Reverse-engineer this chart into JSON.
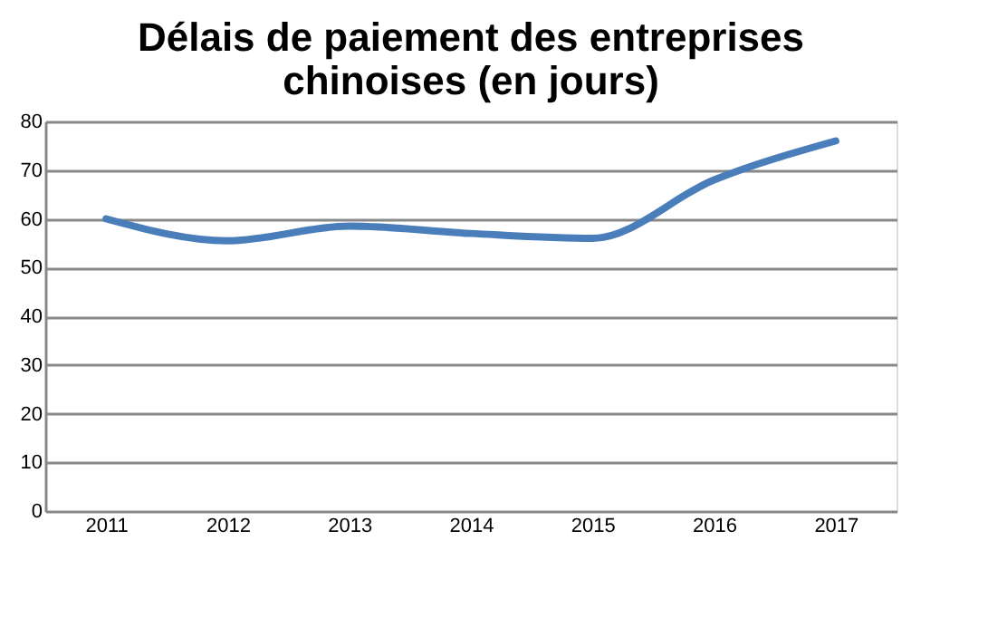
{
  "chart_data": {
    "type": "line",
    "title": "Délais de paiement des entreprises chinoises (en jours)",
    "categories": [
      "2011",
      "2012",
      "2013",
      "2014",
      "2015",
      "2016",
      "2017"
    ],
    "series": [
      {
        "color": "#4a7ebb",
        "values": [
          60,
          55.5,
          58.5,
          57,
          56,
          68,
          76
        ]
      }
    ],
    "ylim": [
      0,
      80
    ],
    "yticks": [
      0,
      10,
      20,
      30,
      40,
      50,
      60,
      70,
      80
    ],
    "grid": "y"
  }
}
